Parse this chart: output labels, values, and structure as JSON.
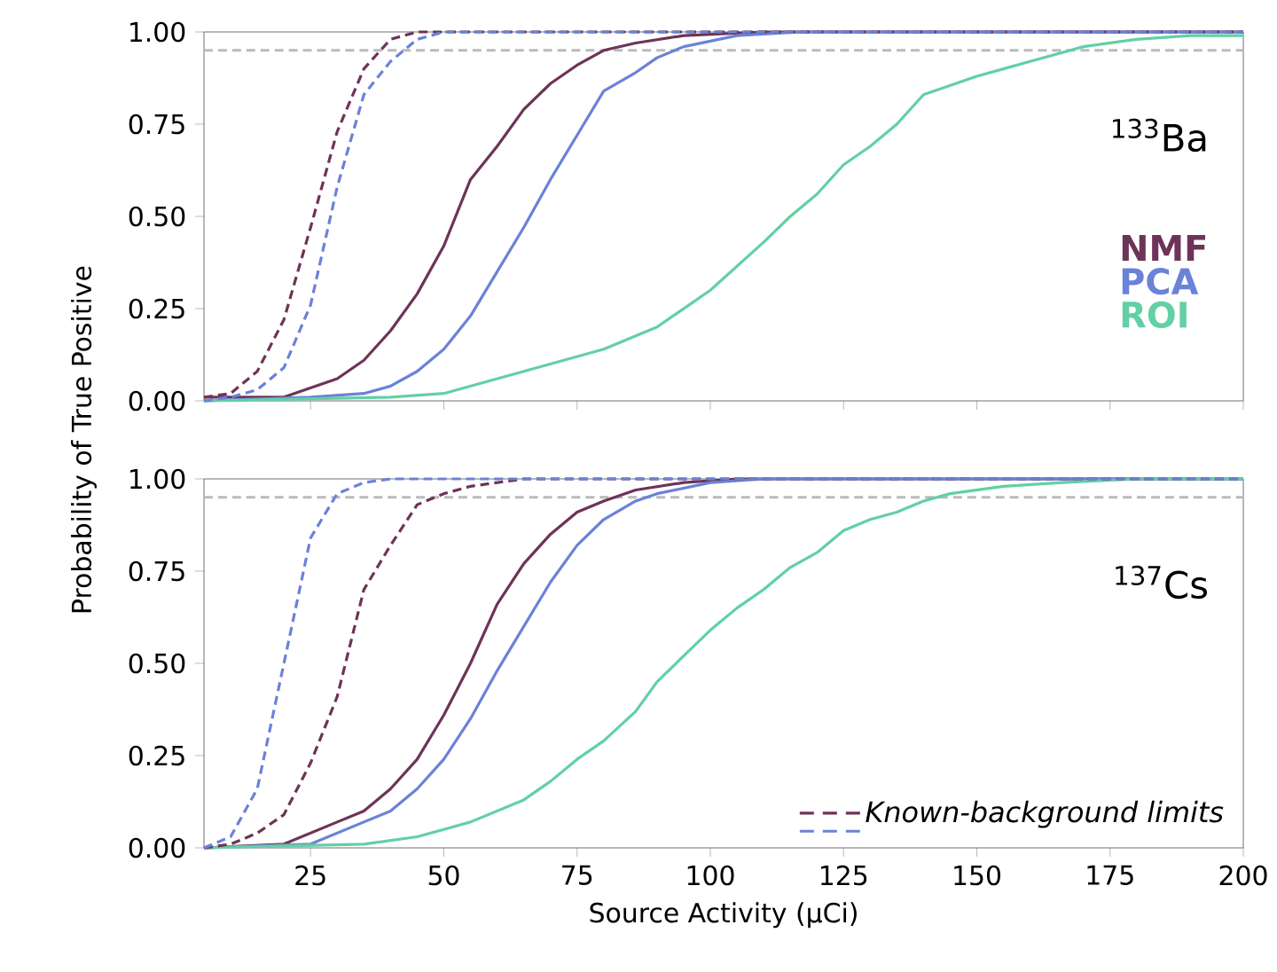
{
  "chart_data": [
    {
      "type": "line",
      "ylabel": "Probability of True Positive",
      "xlim": [
        5,
        200
      ],
      "ylim": [
        0,
        1
      ],
      "xticks": [
        25,
        50,
        75,
        100,
        125,
        150,
        175,
        200
      ],
      "yticks": [
        {
          "value": 0,
          "label": "0.00"
        },
        {
          "value": 0.25,
          "label": "0.25"
        },
        {
          "value": 0.5,
          "label": "0.50"
        },
        {
          "value": 0.75,
          "label": "0.75"
        },
        {
          "value": 1,
          "label": "1.00"
        }
      ],
      "tick_labels": "y",
      "legend": "right",
      "grid": false,
      "annotations": [
        "$^{133}$Ba"
      ],
      "ref_lines": [
        {
          "axis": "y",
          "value": 0.95,
          "color": "#bbbbbb",
          "line_style": "dashed"
        }
      ],
      "series": [
        {
          "name": "NMF",
          "color": "#6e3358",
          "line_style": "solid",
          "x": [
            5,
            20,
            30,
            35,
            40,
            45,
            50,
            55,
            60,
            65,
            70,
            75,
            80,
            86,
            95,
            110,
            200
          ],
          "values": [
            0.01,
            0.01,
            0.06,
            0.11,
            0.19,
            0.29,
            0.42,
            0.6,
            0.69,
            0.79,
            0.86,
            0.91,
            0.95,
            0.97,
            0.99,
            1,
            1
          ]
        },
        {
          "name": "PCA",
          "color": "#6a82d8",
          "line_style": "solid",
          "x": [
            5,
            25,
            35,
            40,
            45,
            50,
            55,
            60,
            65,
            70,
            75,
            80,
            86,
            90,
            95,
            105,
            117,
            200
          ],
          "values": [
            0,
            0.01,
            0.02,
            0.04,
            0.08,
            0.14,
            0.23,
            0.35,
            0.47,
            0.6,
            0.72,
            0.84,
            0.89,
            0.93,
            0.96,
            0.99,
            1,
            1
          ]
        },
        {
          "name": "ROI",
          "color": "#62d0a4",
          "line_style": "solid",
          "x": [
            5,
            40,
            50,
            60,
            70,
            80,
            90,
            100,
            110,
            115,
            120,
            125,
            130,
            135,
            140,
            150,
            155,
            160,
            170,
            180,
            190,
            200
          ],
          "values": [
            0,
            0.01,
            0.02,
            0.06,
            0.1,
            0.14,
            0.2,
            0.3,
            0.43,
            0.5,
            0.56,
            0.64,
            0.69,
            0.75,
            0.83,
            0.88,
            0.9,
            0.92,
            0.96,
            0.98,
            0.99,
            0.99
          ]
        },
        {
          "color": "#6e3358",
          "line_style": "dashed",
          "x": [
            5,
            10,
            15,
            20,
            25,
            30,
            35,
            40,
            45,
            200
          ],
          "values": [
            0.01,
            0.02,
            0.08,
            0.22,
            0.47,
            0.73,
            0.9,
            0.98,
            1,
            1
          ]
        },
        {
          "color": "#6a82d8",
          "line_style": "dashed",
          "x": [
            5,
            10,
            15,
            20,
            25,
            30,
            35,
            40,
            45,
            50,
            200
          ],
          "values": [
            0,
            0.01,
            0.03,
            0.09,
            0.26,
            0.58,
            0.83,
            0.92,
            0.98,
            1,
            1
          ]
        }
      ]
    },
    {
      "type": "line",
      "xlabel": "Source Activity (μCi)",
      "xlim": [
        5,
        200
      ],
      "ylim": [
        0,
        1
      ],
      "xticks": [
        25,
        50,
        75,
        100,
        125,
        150,
        175,
        200
      ],
      "yticks": [
        {
          "value": 0,
          "label": "0.00"
        },
        {
          "value": 0.25,
          "label": "0.25"
        },
        {
          "value": 0.5,
          "label": "0.50"
        },
        {
          "value": 0.75,
          "label": "0.75"
        },
        {
          "value": 1,
          "label": "1.00"
        }
      ],
      "legend": "bottom right",
      "grid": false,
      "annotations": [
        "$^{137}$Cs"
      ],
      "ref_lines": [
        {
          "axis": "y",
          "value": 0.95,
          "color": "#bbbbbb",
          "line_style": "dashed"
        }
      ],
      "series": [
        {
          "color": "#6e3358",
          "line_style": "solid",
          "x": [
            5,
            20,
            30,
            35,
            40,
            45,
            50,
            55,
            60,
            65,
            70,
            75,
            80,
            86,
            95,
            105,
            200
          ],
          "values": [
            0,
            0.01,
            0.07,
            0.1,
            0.16,
            0.24,
            0.36,
            0.5,
            0.66,
            0.77,
            0.85,
            0.91,
            0.94,
            0.97,
            0.99,
            1,
            1
          ]
        },
        {
          "color": "#6a82d8",
          "line_style": "solid",
          "x": [
            5,
            25,
            35,
            40,
            45,
            50,
            55,
            60,
            65,
            70,
            75,
            80,
            86,
            90,
            100,
            110,
            200
          ],
          "values": [
            0,
            0.01,
            0.07,
            0.1,
            0.16,
            0.24,
            0.35,
            0.48,
            0.6,
            0.72,
            0.82,
            0.89,
            0.94,
            0.96,
            0.99,
            1,
            1
          ]
        },
        {
          "color": "#62d0a4",
          "line_style": "solid",
          "x": [
            5,
            35,
            45,
            55,
            65,
            70,
            75,
            80,
            86,
            90,
            95,
            100,
            105,
            110,
            115,
            120,
            125,
            130,
            135,
            140,
            145,
            155,
            166,
            180,
            200
          ],
          "values": [
            0,
            0.01,
            0.03,
            0.07,
            0.13,
            0.18,
            0.24,
            0.29,
            0.37,
            0.45,
            0.52,
            0.59,
            0.65,
            0.7,
            0.76,
            0.8,
            0.86,
            0.89,
            0.91,
            0.94,
            0.96,
            0.98,
            0.99,
            1,
            1
          ]
        },
        {
          "name": "Known-background limits",
          "color": "#6e3358",
          "line_style": "dashed",
          "x": [
            5,
            10,
            15,
            20,
            25,
            30,
            35,
            40,
            45,
            50,
            55,
            65,
            200
          ],
          "values": [
            0,
            0.01,
            0.04,
            0.09,
            0.23,
            0.41,
            0.7,
            0.82,
            0.93,
            0.96,
            0.98,
            1,
            1
          ]
        },
        {
          "color": "#6a82d8",
          "line_style": "dashed",
          "x": [
            5,
            10,
            15,
            20,
            25,
            30,
            35,
            40,
            200
          ],
          "values": [
            0,
            0.03,
            0.16,
            0.5,
            0.84,
            0.96,
            0.99,
            1,
            1
          ]
        }
      ]
    }
  ]
}
